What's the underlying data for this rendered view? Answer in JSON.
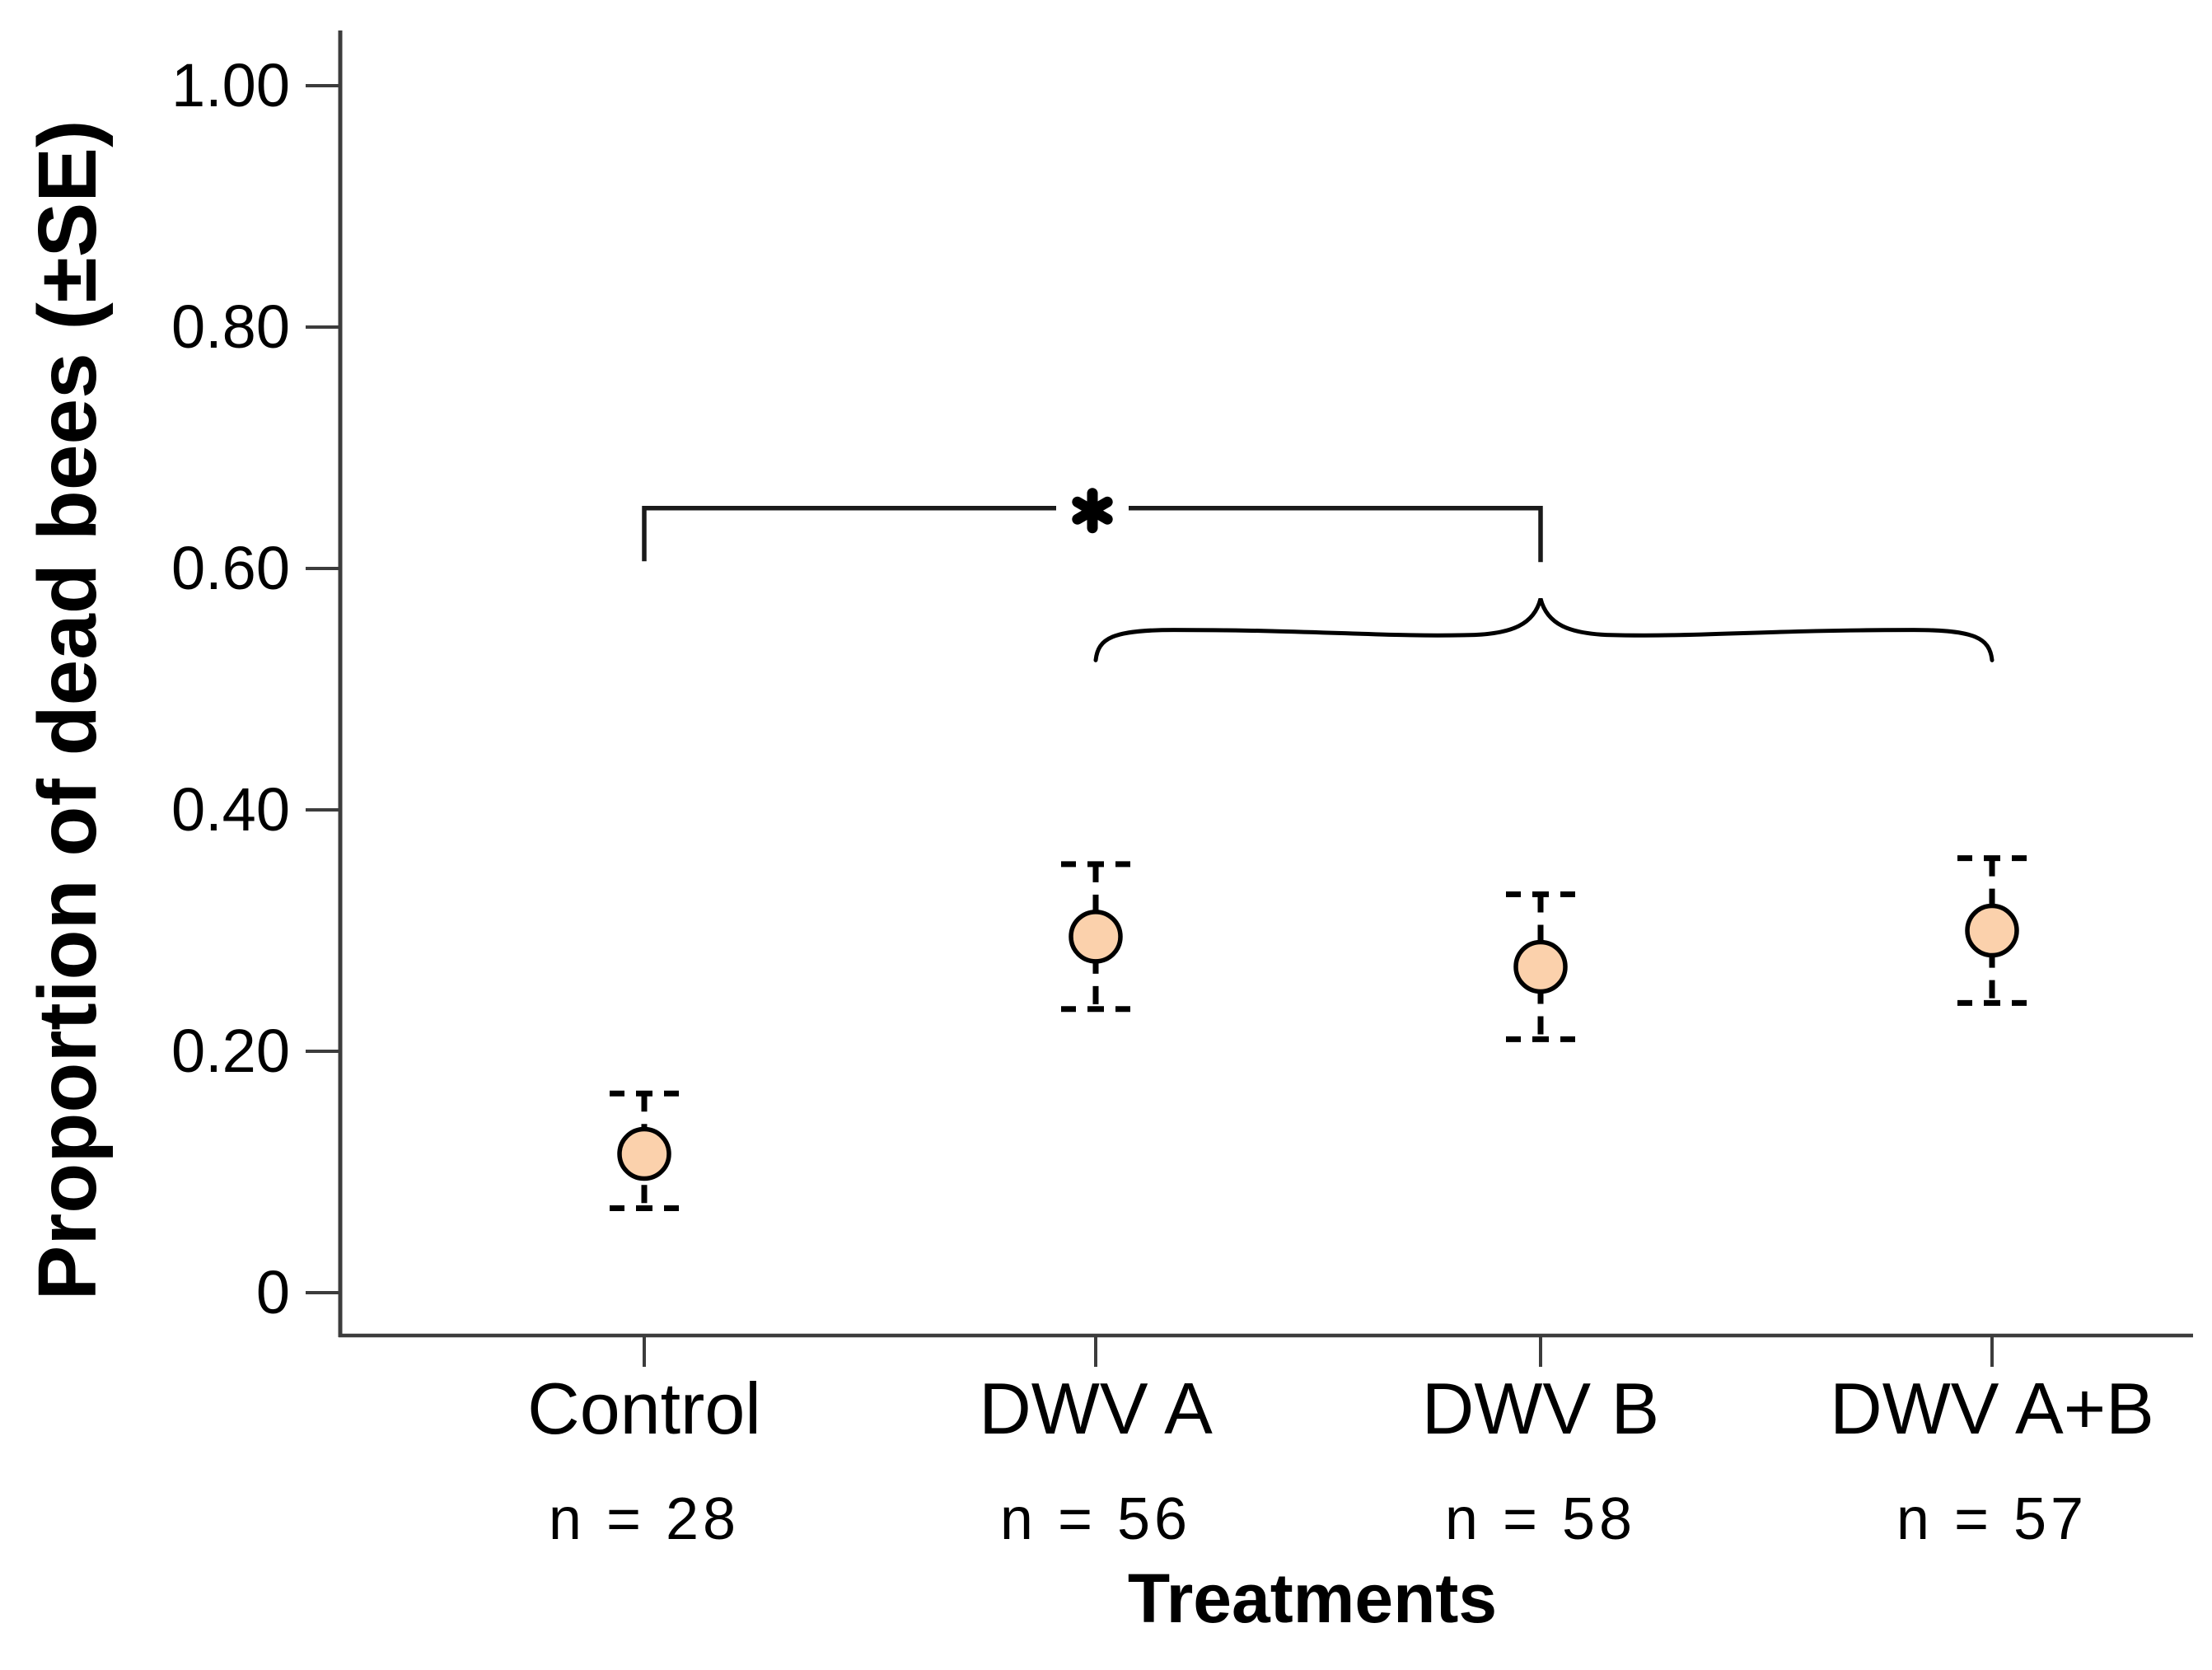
{
  "figure": {
    "background": "#ffffff",
    "text_color": "#000000",
    "axis_color": "#3c3c3c"
  },
  "chart_data": {
    "type": "scatter",
    "title": "",
    "xlabel": "Treatments",
    "ylabel": "Proportion of dead bees (±SE)",
    "ylim": [
      0,
      1.0
    ],
    "grid": false,
    "legend": null,
    "yticks": [
      {
        "v": 1.0,
        "label": "1.00"
      },
      {
        "v": 0.8,
        "label": "0.80"
      },
      {
        "v": 0.6,
        "label": "0.60"
      },
      {
        "v": 0.4,
        "label": "0.40"
      },
      {
        "v": 0.2,
        "label": "0.20"
      },
      {
        "v": 0.0,
        "label": "0"
      }
    ],
    "categories": [
      {
        "label": "Control",
        "n_label": "n = 28",
        "n": 28,
        "mean": 0.115,
        "se": 0.047,
        "upper": 0.165,
        "lower": 0.07
      },
      {
        "label": "DWV A",
        "n_label": "n = 56",
        "n": 56,
        "mean": 0.295,
        "se": 0.06,
        "upper": 0.355,
        "lower": 0.235
      },
      {
        "label": "DWV B",
        "n_label": "n = 58",
        "n": 58,
        "mean": 0.27,
        "se": 0.06,
        "upper": 0.33,
        "lower": 0.21
      },
      {
        "label": "DWV A+B",
        "n_label": "n = 57",
        "n": 57,
        "mean": 0.3,
        "se": 0.06,
        "upper": 0.36,
        "lower": 0.24
      }
    ],
    "marker": {
      "shape": "circle",
      "fill": "#FBD1AC",
      "stroke": "#000000"
    },
    "errorbar_style": "dashed",
    "annotations": [
      {
        "type": "bracket",
        "from": "Control",
        "to": "DWV B",
        "label": "*",
        "y": 0.65,
        "drop_to": 0.606
      },
      {
        "type": "brace",
        "from": "DWV A",
        "to": "DWV A+B",
        "apex": "DWV B",
        "y_apex": 0.575,
        "y_ends": 0.524
      }
    ]
  }
}
